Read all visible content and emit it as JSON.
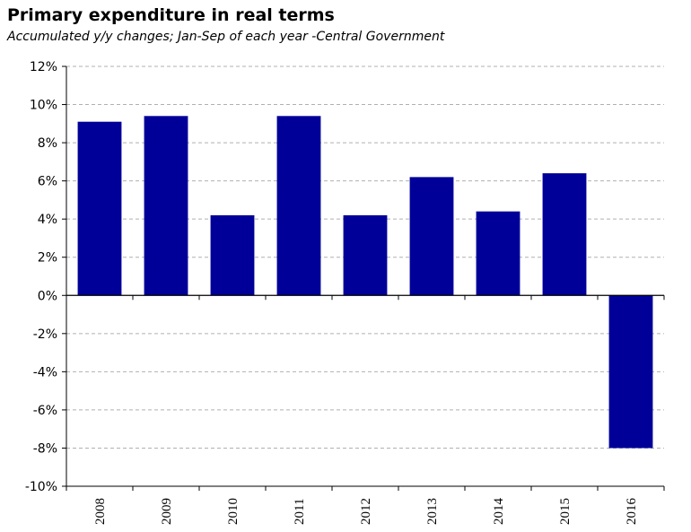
{
  "chart_data": {
    "type": "bar",
    "title": "Primary expenditure  in real terms",
    "subtitle": "Accumulated y/y changes; Jan-Sep of each year -Central Government",
    "xlabel": "",
    "ylabel": "",
    "categories": [
      "2008",
      "2009",
      "2010",
      "2011",
      "2012",
      "2013",
      "2014",
      "2015",
      "2016"
    ],
    "values": [
      9.1,
      9.4,
      4.2,
      9.4,
      4.2,
      6.2,
      4.4,
      6.4,
      -8.0
    ],
    "ylim": [
      -10,
      12
    ],
    "yticks": [
      12,
      10,
      8,
      6,
      4,
      2,
      0,
      -2,
      -4,
      -6,
      -8,
      -10
    ],
    "ytick_labels": [
      "12%",
      "10%",
      "8%",
      "6%",
      "4%",
      "2%",
      "0%",
      "-2%",
      "-4%",
      "-6%",
      "-8%",
      "-10%"
    ],
    "grid": true,
    "legend": "none",
    "colors": {
      "bar": "#000099",
      "grid": "#b0b0b0",
      "axis": "#000000"
    }
  }
}
